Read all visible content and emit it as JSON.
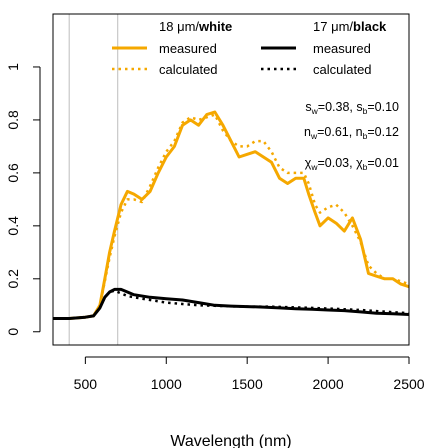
{
  "chart_data": {
    "type": "line",
    "title": "",
    "xlabel": "Wavelength (nm)",
    "ylabel": "",
    "xlim": [
      300,
      2500
    ],
    "ylim": [
      -0.05,
      1.2
    ],
    "xticks": [
      500,
      1000,
      1500,
      2000,
      2500
    ],
    "xtick_labels": [
      "500",
      "1000",
      "1500",
      "2000",
      "2500"
    ],
    "yticks": [
      0,
      0.2,
      0.4,
      0.6,
      0.8,
      1
    ],
    "ytick_labels": [
      "0",
      "0.2",
      "0.4",
      "0.6",
      "0.8",
      "1"
    ],
    "grid": false,
    "vertical_reference_lines_x": [
      400,
      700
    ],
    "legend": {
      "position": "top",
      "columns": [
        {
          "header": {
            "prefix": "18 ",
            "unit": "μm",
            "sep": "/",
            "bold": "white"
          },
          "entries": [
            "measured",
            "calculated"
          ]
        },
        {
          "header": {
            "prefix": "17 ",
            "unit": "μm",
            "sep": "/",
            "bold": "black"
          },
          "entries": [
            "measured",
            "calculated"
          ]
        }
      ]
    },
    "annotations": {
      "s": {
        "sym": "s",
        "sub1": "w",
        "val1": "=0.38, ",
        "sub2": "b",
        "val2": "=0.10"
      },
      "n": {
        "sym": "n",
        "sub1": "w",
        "val1": "=0.61, ",
        "sub2": "b",
        "val2": "=0.12"
      },
      "chi": {
        "sym": "χ",
        "sub1": "w",
        "val1": "=0.03, ",
        "sub2": "b",
        "val2": "=0.01"
      }
    },
    "colors": {
      "white": "#F5A800",
      "black": "#000000"
    },
    "series": [
      {
        "key": "white_measured",
        "color": "#F5A800",
        "style": "solid",
        "x": [
          300,
          400,
          500,
          550,
          590,
          620,
          650,
          680,
          720,
          760,
          800,
          850,
          900,
          950,
          1000,
          1050,
          1100,
          1150,
          1200,
          1250,
          1300,
          1350,
          1400,
          1450,
          1500,
          1550,
          1600,
          1650,
          1700,
          1750,
          1800,
          1850,
          1880,
          1920,
          1950,
          2000,
          2050,
          2100,
          2150,
          2200,
          2250,
          2300,
          2350,
          2400,
          2450,
          2500
        ],
        "y": [
          0.05,
          0.05,
          0.055,
          0.06,
          0.1,
          0.2,
          0.3,
          0.38,
          0.48,
          0.53,
          0.52,
          0.5,
          0.53,
          0.6,
          0.66,
          0.7,
          0.78,
          0.8,
          0.78,
          0.82,
          0.83,
          0.78,
          0.72,
          0.66,
          0.67,
          0.68,
          0.66,
          0.64,
          0.58,
          0.56,
          0.58,
          0.58,
          0.52,
          0.45,
          0.4,
          0.43,
          0.41,
          0.38,
          0.43,
          0.35,
          0.22,
          0.21,
          0.2,
          0.2,
          0.18,
          0.17
        ]
      },
      {
        "key": "white_calculated",
        "color": "#F5A800",
        "style": "dotted",
        "x": [
          300,
          400,
          500,
          550,
          590,
          620,
          650,
          680,
          720,
          760,
          800,
          850,
          900,
          950,
          1000,
          1050,
          1100,
          1150,
          1200,
          1250,
          1300,
          1350,
          1400,
          1450,
          1500,
          1550,
          1600,
          1650,
          1700,
          1750,
          1800,
          1850,
          1880,
          1920,
          1950,
          2000,
          2050,
          2100,
          2150,
          2200,
          2250,
          2300,
          2350,
          2400,
          2450,
          2500
        ],
        "y": [
          0.05,
          0.05,
          0.055,
          0.06,
          0.1,
          0.19,
          0.28,
          0.36,
          0.45,
          0.5,
          0.5,
          0.49,
          0.55,
          0.62,
          0.68,
          0.72,
          0.79,
          0.81,
          0.8,
          0.81,
          0.82,
          0.76,
          0.72,
          0.7,
          0.7,
          0.72,
          0.72,
          0.68,
          0.62,
          0.6,
          0.6,
          0.6,
          0.56,
          0.48,
          0.45,
          0.47,
          0.48,
          0.45,
          0.4,
          0.34,
          0.25,
          0.22,
          0.2,
          0.2,
          0.19,
          0.18
        ]
      },
      {
        "key": "black_measured",
        "color": "#000000",
        "style": "solid",
        "x": [
          300,
          400,
          500,
          550,
          590,
          620,
          650,
          680,
          700,
          720,
          760,
          800,
          900,
          1000,
          1100,
          1200,
          1300,
          1400,
          1500,
          1600,
          1700,
          1800,
          1900,
          2000,
          2100,
          2200,
          2300,
          2400,
          2500
        ],
        "y": [
          0.05,
          0.05,
          0.055,
          0.06,
          0.09,
          0.13,
          0.15,
          0.16,
          0.16,
          0.16,
          0.15,
          0.14,
          0.13,
          0.125,
          0.12,
          0.11,
          0.1,
          0.097,
          0.095,
          0.093,
          0.09,
          0.087,
          0.085,
          0.082,
          0.08,
          0.075,
          0.07,
          0.068,
          0.065
        ]
      },
      {
        "key": "black_calculated",
        "color": "#000000",
        "style": "dotted",
        "x": [
          300,
          400,
          500,
          550,
          590,
          620,
          650,
          680,
          700,
          720,
          760,
          800,
          900,
          1000,
          1100,
          1200,
          1300,
          1400,
          1500,
          1600,
          1700,
          1800,
          1900,
          2000,
          2100,
          2200,
          2300,
          2400,
          2500
        ],
        "y": [
          0.05,
          0.05,
          0.055,
          0.06,
          0.09,
          0.13,
          0.15,
          0.155,
          0.15,
          0.145,
          0.135,
          0.13,
          0.12,
          0.11,
          0.105,
          0.1,
          0.098,
          0.096,
          0.095,
          0.095,
          0.094,
          0.092,
          0.09,
          0.088,
          0.085,
          0.082,
          0.078,
          0.074,
          0.07
        ]
      }
    ]
  }
}
